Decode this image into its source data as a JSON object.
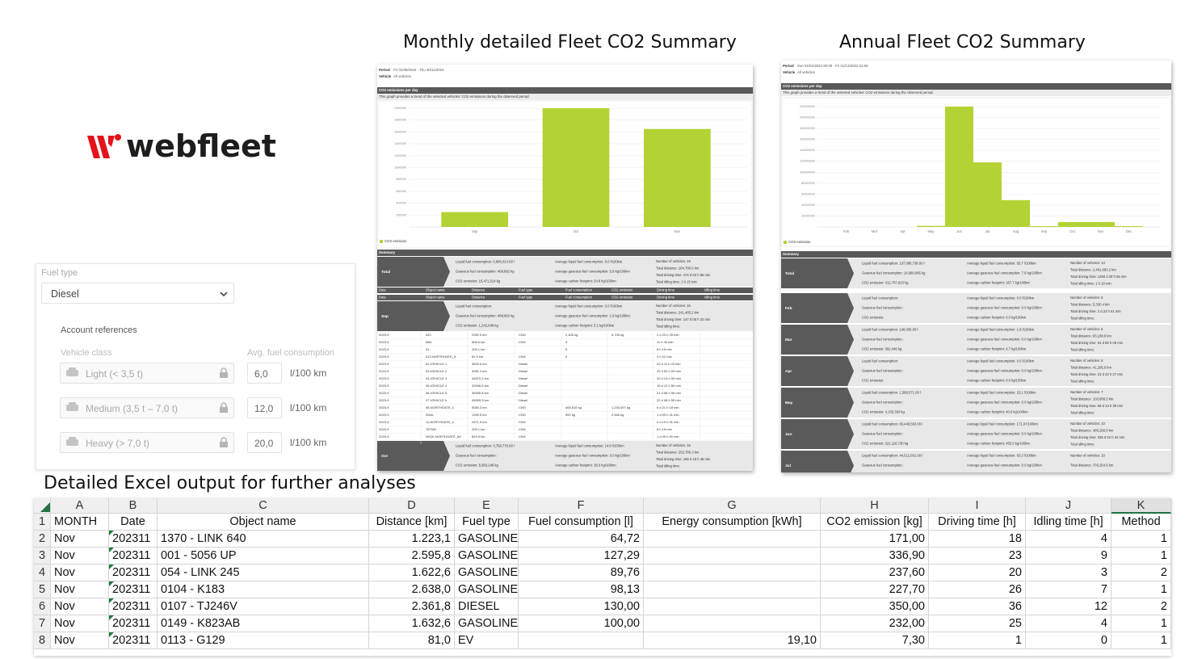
{
  "logo": {
    "text": "webfleet"
  },
  "headings": {
    "monthly": "Monthly detailed Fleet CO2 Summary",
    "annual": "Annual Fleet CO2 Summary",
    "excel": "Detailed Excel output for further analyses"
  },
  "settings_form": {
    "fuel_type_label": "Fuel type",
    "fuel_type": "Diesel",
    "account_references": "Account references",
    "columns": [
      "Vehicle class",
      "Avg. fuel consumption"
    ],
    "vehicle_classes": [
      {
        "name": "Light (< 3,5 t)",
        "value": "6,0",
        "unit": "l/100 km"
      },
      {
        "name": "Medium (3,5 t – 7,0 t)",
        "value": "12,0",
        "unit": "l/100 km"
      },
      {
        "name": "Heavy (> 7,0 t)",
        "value": "20,0",
        "unit": "l/100 km"
      }
    ]
  },
  "chart_data": [
    {
      "type": "bar",
      "title": "CO2 emissions per day",
      "subtitle": "This graph provides a trend of the selected vehicles' CO2 emissions during the observed period.",
      "categories": [
        "Sep",
        "Oct",
        "Nov"
      ],
      "series": [
        {
          "name": "CO2 emission",
          "color": "#b3d334",
          "values": [
            250000,
            2000000,
            1650000
          ]
        }
      ],
      "ylim": [
        0,
        2000000
      ],
      "yticks": [
        200000,
        400000,
        600000,
        800000,
        1000000,
        1200000,
        1400000,
        1600000,
        1800000,
        2000000
      ],
      "grid": true
    },
    {
      "type": "bar",
      "title": "CO2 emissions per day",
      "subtitle": "This graph provides a trend of the selected vehicles' CO2 emissions during the observed period.",
      "categories": [
        "Feb",
        "Mar",
        "Apr",
        "May",
        "Jun",
        "Jul",
        "Aug",
        "Sep",
        "Oct",
        "Nov",
        "Dec"
      ],
      "series": [
        {
          "name": "CO2 emission",
          "color": "#b3d334",
          "values": [
            0,
            0,
            0,
            2000000,
            220000000,
            118000000,
            49000000,
            1500000,
            9000000,
            9000000,
            1500000
          ]
        }
      ],
      "ylim": [
        0,
        220000000
      ],
      "yticks": [
        20000000,
        40000000,
        60000000,
        80000000,
        100000000,
        120000000,
        140000000,
        160000000,
        180000000,
        200000000,
        220000000
      ],
      "grid": true
    }
  ],
  "reports": [
    {
      "period_label": "Period",
      "period": "Fri 01/09/2023 - Thu 30/11/2023",
      "vehicle_label": "Vehicle",
      "vehicle": "All vehicles",
      "summary_title": "Summary",
      "columns": [
        "Date",
        "Object name",
        "Distance",
        "Fuel type",
        "Fuel consumption",
        "CO2 emission",
        "Driving time",
        "Idling time"
      ],
      "blocks": [
        {
          "label": "Total",
          "lines": [
            [
              "Liquid fuel consumption: 6,886,014.00 l",
              "Gaseous fuel consumption: 468,882 kg",
              "CO2 emission: 15,471,514 kg"
            ],
            [
              "Average liquid fuel consumption: 8.0 l/100km",
              "Average gaseous fuel consumption: 5.8 kg/100km",
              "Average carbon footprint: 24.8 kg/100km"
            ],
            [
              "Number of vehicles: 18",
              "Total distance: 184,790.5 km",
              "Total driving time: 474 d 02 h 56 min",
              "Total idling time: 1 h 15 min"
            ]
          ]
        },
        {
          "label": "Sep",
          "lines": [
            [
              "Liquid fuel consumption:",
              "Gaseous fuel consumption: 468,882 kg",
              "CO2 emission: 1,242,648 kg"
            ],
            [
              "Average liquid fuel consumption: 0.0 l/100km",
              "Average gaseous fuel consumption: 1.9 kg/100km",
              "Average carbon footprint: 5.1 kg/100km"
            ],
            [
              "Number of vehicles: 15",
              "Total distance: 241,485.2 km",
              "Total driving time: 147 d 05 h 33 min",
              "Total idling time:"
            ]
          ]
        },
        {
          "label": "Oct",
          "lines": [
            [
              "Liquid fuel consumption: 3,759,770.00 l",
              "Gaseous fuel consumption:",
              "CO2 emission: 5,963,248 kg"
            ],
            [
              "Average liquid fuel consumption: 14.8 l/100km",
              "Average gaseous fuel consumption: 0.0 kg/100km",
              "Average carbon footprint: 39.3 kg/100km"
            ],
            [
              "Number of vehicles: 15",
              "Total distance: 253,785.3 km",
              "Total driving time: 160 d 15 h 45 min",
              "Total idling time:"
            ]
          ]
        }
      ],
      "rows": [
        [
          "2023-9",
          "087-",
          "2392.5 km",
          "CNG",
          "2,405 kg",
          "6,705 kg",
          "2 d 23 h 25 min"
        ],
        [
          "2023-9",
          "088-",
          "506.6 km",
          "CNG",
          "0",
          null,
          "11 h 44 min"
        ],
        [
          "2023-9",
          "01-",
          "205.1 km",
          null,
          "0",
          null,
          "8 h 15 min"
        ],
        [
          "2023-9",
          "012-NORTHGATE_5",
          "81.9 km",
          "CNG",
          "0",
          null,
          "3 h 22 min"
        ],
        [
          "2023-9",
          "02-VEHICLE 1",
          "3592.8 km",
          "Diesel",
          null,
          null,
          "22 d 11 h 03 min"
        ],
        [
          "2023-9",
          "03-VEHICLE 2",
          "4051.4 km",
          "Diesel",
          null,
          null,
          "22 d 00 h 03 min"
        ],
        [
          "2023-9",
          "04-VEHICLE 3",
          "34870.2 km",
          "Diesel",
          null,
          null,
          "20 d 14 h 00 min"
        ],
        [
          "2023-9",
          "05-VEHICLE 4",
          "32906.5 km",
          "Diesel",
          null,
          null,
          "19 d 12 h 50 min"
        ],
        [
          "2023-9",
          "06-VEHICLE 5",
          "36995.8 km",
          "Diesel",
          null,
          null,
          "21 d 08 h 06 min"
        ],
        [
          "2023-9",
          "07-VEHICLE 6",
          "45909.3 km",
          "Diesel",
          null,
          null,
          "22 d 08 h 55 min"
        ],
        [
          "2023-9",
          "08-NORTHGATE_1",
          "5083.3 km",
          "CNG",
          "465,515 kg",
          "1,233,597 kg",
          "6 d 21 h 18 min"
        ],
        [
          "2023-9",
          "09eb-",
          "1399.5 km",
          "CNG",
          "962 kg",
          "2,546 kg",
          "1 d 09 h 41 min"
        ],
        [
          "2023-9",
          "11-NORTHGATE_4",
          "2871.9 km",
          "CNG",
          null,
          null,
          "4 d 19 h 31 min"
        ],
        [
          "2023-9",
          "787981",
          "205.1 km",
          "CNG",
          null,
          null,
          "8 h 15 min"
        ],
        [
          "2023-9",
          "NSZK-NORTHGATE_5d",
          "829.5 km",
          "CNG",
          null,
          null,
          "1 d 09 h 00 min"
        ]
      ]
    },
    {
      "period_label": "Period",
      "period": "Sun 01/01/2023 00:00 - Fri 01/12/2023 02:05",
      "vehicle_label": "Vehicle",
      "vehicle": "All vehicles",
      "summary_title": "Summary",
      "blocks": [
        {
          "label": "Total",
          "lines": [
            [
              "Liquid fuel consumption: 137,086,738.00 l",
              "Gaseous fuel consumption: 18,688,685 kg",
              "CO2 emission: 412,767,620 kg"
            ],
            [
              "Average liquid fuel consumption: 55.7 l/100km",
              "Average gaseous fuel consumption: 7.6 kg/100km",
              "Average carbon footprint: 167.7 kg/100km"
            ],
            [
              "Number of vehicles: 13",
              "Total distance: 2,491,093.2 km",
              "Total driving time: 1260 d 20 h 55 min",
              "Total idling time: 1 h 10 min"
            ]
          ]
        },
        {
          "label": "Feb",
          "lines": [
            [
              "Liquid fuel consumption:",
              "Gaseous fuel consumption:",
              "CO2 emission:"
            ],
            [
              "Average liquid fuel consumption: 0.0 l/100km",
              "Average gaseous fuel consumption: 0.0 kg/100km",
              "Average carbon footprint: 0.0 kg/100km"
            ],
            [
              "Number of vehicles: 6",
              "Total distance: 5,300.4 km",
              "Total driving time: 2 d 23 h 51 min",
              "Total idling time:"
            ]
          ]
        },
        {
          "label": "Mar",
          "lines": [
            [
              "Liquid fuel consumption: 148,095.00 l",
              "Gaseous fuel consumption:",
              "CO2 emission: 392,446 kg"
            ],
            [
              "Average liquid fuel consumption: 1.8 l/100km",
              "Average gaseous fuel consumption: 0.0 kg/100km",
              "Average carbon footprint: 4.7 kg/100km"
            ],
            [
              "Number of vehicles: 6",
              "Total distance: 83,188.8 km",
              "Total driving time: 54 d 05 h 06 min",
              "Total idling time:"
            ]
          ]
        },
        {
          "label": "Apr",
          "lines": [
            [
              "Liquid fuel consumption:",
              "Gaseous fuel consumption:",
              "CO2 emission:"
            ],
            [
              "Average liquid fuel consumption: 0.0 l/100km",
              "Average gaseous fuel consumption: 0.0 kg/100km",
              "Average carbon footprint: 0.0 kg/100km"
            ],
            [
              "Number of vehicles: 6",
              "Total distance: 41,285.6 km",
              "Total driving time: 23 d 22 h 27 min",
              "Total idling time:"
            ]
          ]
        },
        {
          "label": "May",
          "lines": [
            [
              "Liquid fuel consumption: 1,568,571.00 l",
              "Gaseous fuel consumption:",
              "CO2 emission: 4,155,393 kg"
            ],
            [
              "Average liquid fuel consumption: 15.1 l/100km",
              "Average gaseous fuel consumption: 0.0 kg/100km",
              "Average carbon footprint: 40.0 kg/100km"
            ],
            [
              "Number of vehicles: 7",
              "Total distance: 103,886.5 km",
              "Total driving time: 58 d 13 h 39 min",
              "Total idling time:"
            ]
          ]
        },
        {
          "label": "Jun",
          "lines": [
            [
              "Liquid fuel consumption: 83,449,563.00 l",
              "Gaseous fuel consumption:",
              "CO2 emission: 221,116,730 kg"
            ],
            [
              "Average liquid fuel consumption: 171.9 l/100km",
              "Average gaseous fuel consumption: 0.0 kg/100km",
              "Average carbon footprint: 455.5 kg/100km"
            ],
            [
              "Number of vehicles: 10",
              "Total distance: 485,266.8 km",
              "Total driving time: 325 d 02 h 34 min",
              "Total idling time:"
            ]
          ]
        },
        {
          "label": "Jul",
          "lines": [
            [
              "Liquid fuel consumption: 44,512,691.00 l",
              "Gaseous fuel consumption:"
            ],
            [
              "Average liquid fuel consumption: 63.3 l/100km",
              "Average gaseous fuel consumption: 0.0 kg/100km"
            ],
            [
              "Number of vehicles: 10",
              "Total distance: 703,254.5 km",
              "Total driving time: 147 d 07 h 44 min"
            ]
          ]
        }
      ]
    }
  ],
  "spreadsheet": {
    "column_letters": [
      "A",
      "B",
      "C",
      "D",
      "E",
      "F",
      "G",
      "H",
      "I",
      "J",
      "K"
    ],
    "row_numbers": [
      1,
      2,
      3,
      4,
      5,
      6,
      7,
      8
    ],
    "header": [
      "MONTH",
      "Date",
      "Object name",
      "Distance [km]",
      "Fuel type",
      "Fuel consumption [l]",
      "Energy consumption [kWh]",
      "CO2 emission [kg]",
      "Driving time [h]",
      "Idling time [h]",
      "Method"
    ],
    "rows": [
      [
        "Nov",
        "202311",
        "1370 - LINK 640",
        "1.223,1",
        "GASOLINE",
        "64,72",
        null,
        "171,00",
        "18",
        "4",
        "1"
      ],
      [
        "Nov",
        "202311",
        "001 - 5056 UP",
        "2.595,8",
        "GASOLINE",
        "127,29",
        null,
        "336,90",
        "23",
        "9",
        "1"
      ],
      [
        "Nov",
        "202311",
        "054 - LINK 245",
        "1.622,6",
        "GASOLINE",
        "89,76",
        null,
        "237,60",
        "20",
        "3",
        "2"
      ],
      [
        "Nov",
        "202311",
        "0104 - K183",
        "2.638,0",
        "GASOLINE",
        "98,13",
        null,
        "227,70",
        "26",
        "7",
        "1"
      ],
      [
        "Nov",
        "202311",
        "0107 - TJ246V",
        "2.361,8",
        "DIESEL",
        "130,00",
        null,
        "350,00",
        "36",
        "12",
        "2"
      ],
      [
        "Nov",
        "202311",
        "0149 - K823AB",
        "1.632,6",
        "GASOLINE",
        "100,00",
        null,
        "232,00",
        "25",
        "4",
        "1"
      ],
      [
        "Nov",
        "202311",
        "0113 - G129",
        "81,0",
        "EV",
        null,
        "19,10",
        "7,30",
        "1",
        "0",
        "1"
      ]
    ]
  }
}
